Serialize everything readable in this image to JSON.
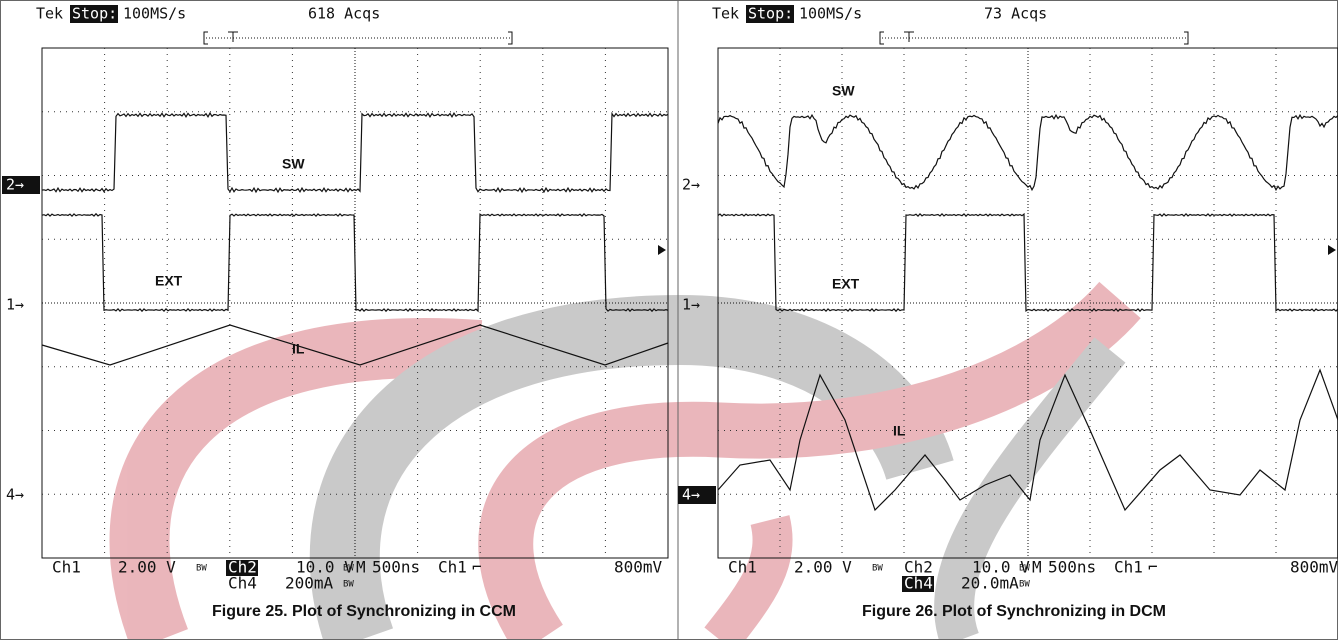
{
  "panels": [
    {
      "header": {
        "brand": "Tek",
        "state": "Stop:",
        "rate": "100MS/s",
        "acqs": "618 Acqs"
      },
      "markers": [
        "2→",
        "1→",
        "4→"
      ],
      "labels": {
        "sw": "SW",
        "ext": "EXT",
        "il": "IL"
      },
      "footer": {
        "line1": [
          "Ch1",
          "2.00 V",
          "BW",
          "Ch2",
          "10.0 V",
          "BW",
          "M",
          "500ns",
          "Ch1",
          "⌐",
          "800mV"
        ],
        "line2": [
          "Ch4",
          "200mA",
          "BW"
        ]
      },
      "caption": "Figure 25. Plot of Synchronizing in CCM"
    },
    {
      "header": {
        "brand": "Tek",
        "state": "Stop:",
        "rate": "100MS/s",
        "acqs": "73 Acqs"
      },
      "markers": [
        "2→",
        "1→",
        "4→"
      ],
      "labels": {
        "sw": "SW",
        "ext": "EXT",
        "il": "IL"
      },
      "footer": {
        "line1": [
          "Ch1",
          "2.00 V",
          "BW",
          "Ch2",
          "10.0 V",
          "BW",
          "M",
          "500ns",
          "Ch1",
          "⌐",
          "800mV"
        ],
        "line2": [
          "Ch4",
          "20.0mA",
          "BW"
        ]
      },
      "caption": "Figure 26. Plot of Synchronizing in DCM"
    }
  ]
}
